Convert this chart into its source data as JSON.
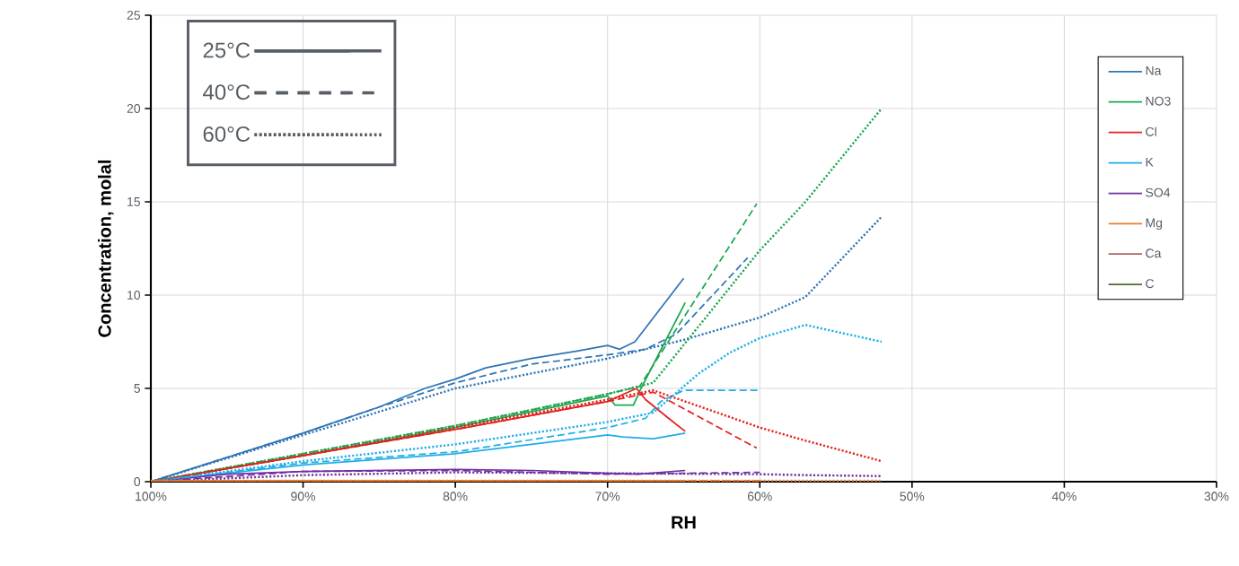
{
  "chart_data": {
    "type": "line",
    "xlabel": "RH",
    "ylabel": "Concentration, molal",
    "xlim": [
      100,
      30
    ],
    "xticks": [
      {
        "value": 100,
        "label": "100%"
      },
      {
        "value": 90,
        "label": "90%"
      },
      {
        "value": 80,
        "label": "80%"
      },
      {
        "value": 70,
        "label": "70%"
      },
      {
        "value": 60,
        "label": "60%"
      },
      {
        "value": 50,
        "label": "50%"
      },
      {
        "value": 40,
        "label": "40%"
      },
      {
        "value": 30,
        "label": "30%"
      }
    ],
    "ylim": [
      0,
      25
    ],
    "yticks": [
      0,
      5,
      10,
      15,
      20,
      25
    ],
    "grid": true,
    "legend": "top right",
    "series": [
      {
        "name": "Na",
        "color": "#2e75b6",
        "line_style": "solid",
        "x": [
          100,
          95,
          90,
          85,
          82,
          80,
          78,
          75,
          72,
          70,
          69.2,
          68.2,
          65
        ],
        "values": [
          0,
          1.3,
          2.6,
          4.0,
          5.0,
          5.5,
          6.1,
          6.6,
          7.0,
          7.3,
          7.1,
          7.5,
          10.9
        ]
      },
      {
        "name": "NO3",
        "color": "#1aa84f",
        "line_style": "solid",
        "x": [
          100,
          90,
          80,
          70,
          69.5,
          68.3,
          67.8,
          64.9
        ],
        "values": [
          0,
          1.4,
          2.9,
          4.6,
          4.1,
          4.1,
          5.0,
          9.6
        ]
      },
      {
        "name": "Cl",
        "color": "#e3201c",
        "line_style": "solid",
        "x": [
          100,
          90,
          80,
          70,
          68.1,
          67.5,
          66,
          64.9
        ],
        "values": [
          0,
          1.4,
          2.8,
          4.3,
          5.0,
          4.4,
          3.4,
          2.7
        ]
      },
      {
        "name": "K",
        "color": "#1eaee6",
        "line_style": "solid",
        "x": [
          100,
          90,
          80,
          75,
          70,
          69,
          67,
          64.9
        ],
        "values": [
          0,
          0.9,
          1.5,
          2.0,
          2.5,
          2.4,
          2.3,
          2.6
        ]
      },
      {
        "name": "SO4",
        "color": "#7030a0",
        "line_style": "solid",
        "x": [
          100,
          95,
          90,
          80,
          75,
          70,
          68,
          64.9
        ],
        "values": [
          0,
          0.4,
          0.55,
          0.65,
          0.6,
          0.45,
          0.4,
          0.6
        ]
      },
      {
        "name": "Mg",
        "color": "#ed7d31",
        "line_style": "solid",
        "x": [
          100,
          90,
          80,
          70,
          64.9
        ],
        "values": [
          0.05,
          0.05,
          0.05,
          0.05,
          0.05
        ]
      },
      {
        "name": "Ca",
        "color": "#b05f5f",
        "line_style": "solid",
        "values": [
          null
        ]
      },
      {
        "name": "C",
        "color": "#4e6b2e",
        "line_style": "solid",
        "values": [
          null
        ]
      },
      {
        "name": "25°C",
        "color": "#595f66",
        "line_style": "solid",
        "values": [
          null
        ]
      },
      {
        "name": "40°C",
        "color": "#595f66",
        "line_style": "dashed",
        "values": [
          null
        ]
      },
      {
        "name": "60°C",
        "color": "#595f66",
        "line_style": "dotted",
        "values": [
          null
        ]
      },
      {
        "color": "#2e75b6",
        "line_style": "dashed",
        "x": [
          100,
          90,
          85,
          80,
          75,
          70,
          67.5,
          65.5,
          60.8
        ],
        "values": [
          0,
          2.6,
          4.0,
          5.3,
          6.3,
          6.8,
          7.1,
          7.9,
          12.0
        ]
      },
      {
        "color": "#1aa84f",
        "line_style": "dashed",
        "x": [
          100,
          90,
          80,
          70,
          67.9,
          60.2
        ],
        "values": [
          0,
          1.5,
          3.0,
          4.7,
          5.1,
          14.9
        ]
      },
      {
        "color": "#e3201c",
        "line_style": "dashed",
        "x": [
          100,
          90,
          80,
          70,
          67,
          60.2
        ],
        "values": [
          0,
          1.4,
          2.8,
          4.3,
          4.8,
          1.8
        ]
      },
      {
        "color": "#1eaee6",
        "line_style": "dashed",
        "x": [
          100,
          90,
          80,
          70,
          67.5,
          66.5,
          65,
          60
        ],
        "values": [
          0,
          1.0,
          1.6,
          2.9,
          3.4,
          4.3,
          4.9,
          4.9
        ]
      },
      {
        "color": "#7030a0",
        "line_style": "dashed",
        "x": [
          100,
          90,
          80,
          70,
          65,
          60
        ],
        "values": [
          0,
          0.55,
          0.6,
          0.4,
          0.45,
          0.5
        ]
      },
      {
        "color": "#ed7d31",
        "line_style": "dashed",
        "x": [
          100,
          80,
          60
        ],
        "values": [
          0.05,
          0.05,
          0.05
        ]
      },
      {
        "color": "#2e75b6",
        "line_style": "dotted",
        "x": [
          100,
          90,
          80,
          70,
          65,
          60,
          57,
          52
        ],
        "values": [
          0,
          2.5,
          5.0,
          6.6,
          7.6,
          8.8,
          9.9,
          14.2
        ]
      },
      {
        "color": "#1aa84f",
        "line_style": "dotted",
        "x": [
          100,
          90,
          80,
          70,
          67,
          60,
          57,
          52
        ],
        "values": [
          0,
          1.5,
          3.0,
          4.7,
          5.3,
          12.4,
          15.0,
          20.0
        ]
      },
      {
        "color": "#e3201c",
        "line_style": "dotted",
        "x": [
          100,
          90,
          80,
          70,
          67,
          60,
          57,
          52
        ],
        "values": [
          0,
          1.4,
          2.9,
          4.4,
          4.9,
          2.9,
          2.2,
          1.1
        ]
      },
      {
        "color": "#1eaee6",
        "line_style": "dotted",
        "x": [
          100,
          90,
          80,
          70,
          67,
          64,
          62,
          60,
          57,
          52
        ],
        "values": [
          0,
          1.1,
          2.0,
          3.2,
          3.7,
          5.8,
          6.9,
          7.7,
          8.4,
          7.5
        ]
      },
      {
        "color": "#7030a0",
        "line_style": "dotted",
        "x": [
          100,
          90,
          80,
          70,
          60,
          57,
          52
        ],
        "values": [
          0,
          0.35,
          0.5,
          0.45,
          0.4,
          0.35,
          0.3
        ]
      },
      {
        "color": "#ed7d31",
        "line_style": "dotted",
        "x": [
          100,
          80,
          52
        ],
        "values": [
          0.05,
          0.05,
          0.05
        ]
      }
    ]
  }
}
